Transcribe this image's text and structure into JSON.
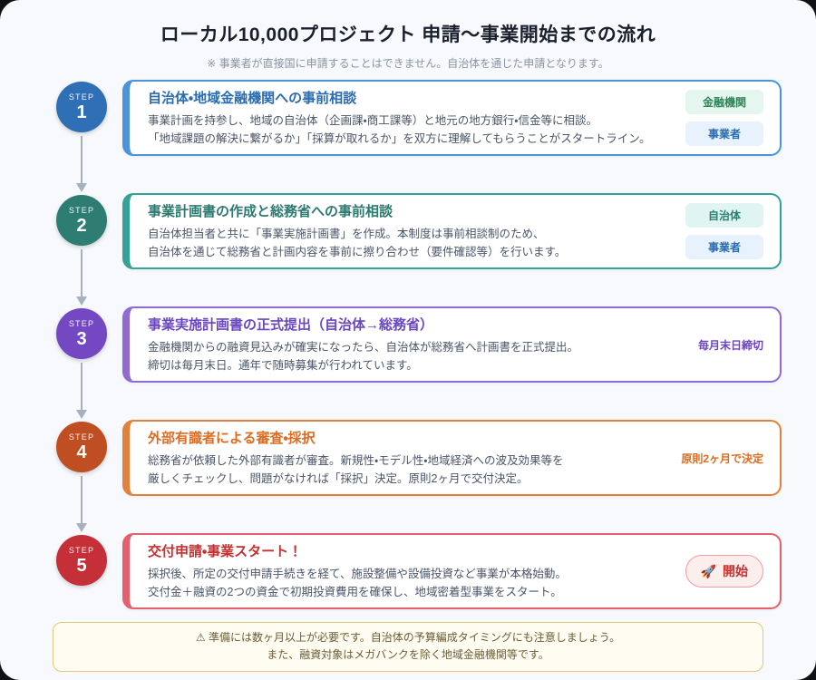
{
  "header": {
    "title": "ローカル10,000プロジェクト 申請〜事業開始までの流れ",
    "subtitle": "※ 事業者が直接国に申請することはできません。自治体を通じた申請となります。"
  },
  "steps": [
    {
      "step_label": "STEP",
      "number": "1",
      "title": "自治体・地域金融機関への事前相談",
      "body_line1": "事業計画を持参し、地域の自治体（企画課・商工課等）と地元の地方銀行・信金等に相談。",
      "body_line2": "「地域課題の解決に繋がるか」「採算が取れるか」を双方に理解してもらうことがスタートライン。",
      "tags": [
        {
          "label": "金融機関",
          "bg": "#e4f6ed",
          "color": "#2f855a"
        },
        {
          "label": "事業者",
          "bg": "#e7f2fc",
          "color": "#2b6cb0"
        }
      ],
      "accent": "#2b6cb0"
    },
    {
      "step_label": "STEP",
      "number": "2",
      "title": "事業計画書の作成と総務省への事前相談",
      "body_line1": "自治体担当者と共に「事業実施計画書」を作成。本制度は事前相談制のため、",
      "body_line2": "自治体を通じて総務省と計画内容を事前に擦り合わせ（要件確認等）を行います。",
      "tags": [
        {
          "label": "自治体",
          "bg": "#e0f5f1",
          "color": "#2a7f74"
        },
        {
          "label": "事業者",
          "bg": "#e7f2fc",
          "color": "#2b6cb0"
        }
      ],
      "accent": "#2c7a6f"
    },
    {
      "step_label": "STEP",
      "number": "3",
      "title": "事業実施計画書の正式提出（自治体→総務省）",
      "body_line1": "金融機関からの融資見込みが確実になったら、自治体が総務省へ計画書を正式提出。",
      "body_line2": "締切は毎月末日。通年で随時募集が行われています。",
      "side_label": "毎月末日締切",
      "accent": "#6b46c1"
    },
    {
      "step_label": "STEP",
      "number": "4",
      "title": "外部有識者による審査・採択",
      "body_line1": "総務省が依頼した外部有識者が審査。新規性・モデル性・地域経済への波及効果等を",
      "body_line2": "厳しくチェックし、問題がなければ「採択」決定。原則2ヶ月で交付決定。",
      "side_label": "原則2ヶ月で決定",
      "accent": "#dd6b20"
    },
    {
      "step_label": "STEP",
      "number": "5",
      "title": "交付申請・事業スタート！",
      "body_line1": "採択後、所定の交付申請手続きを経て、施設整備や設備投資など事業が本格始動。",
      "body_line2": "交付金＋融資の2つの資金で初期投資費用を確保し、地域密着型事業をスタート。",
      "badge": {
        "icon": "🚀",
        "label": "開始"
      },
      "accent": "#c53030"
    }
  ],
  "footer": {
    "warning_icon": "⚠",
    "line1": "準備には数ヶ月以上が必要です。自治体の予算編成タイミングにも注意しましょう。",
    "line2": "また、融資対象はメガバンクを除く地域金融機関等です。"
  },
  "palette": {
    "page_background": "#f7f9fc",
    "card_background": "#ffffff",
    "step1_accent": "#2b6cb0",
    "step2_accent": "#2c7a6f",
    "step3_accent": "#6b46c1",
    "step4_accent": "#dd6b20",
    "step5_accent": "#c53030",
    "connector_gray": "#a6b1c0",
    "body_text": "#4a5568",
    "footer_border": "#e3c877",
    "footer_text": "#6b5d35"
  }
}
